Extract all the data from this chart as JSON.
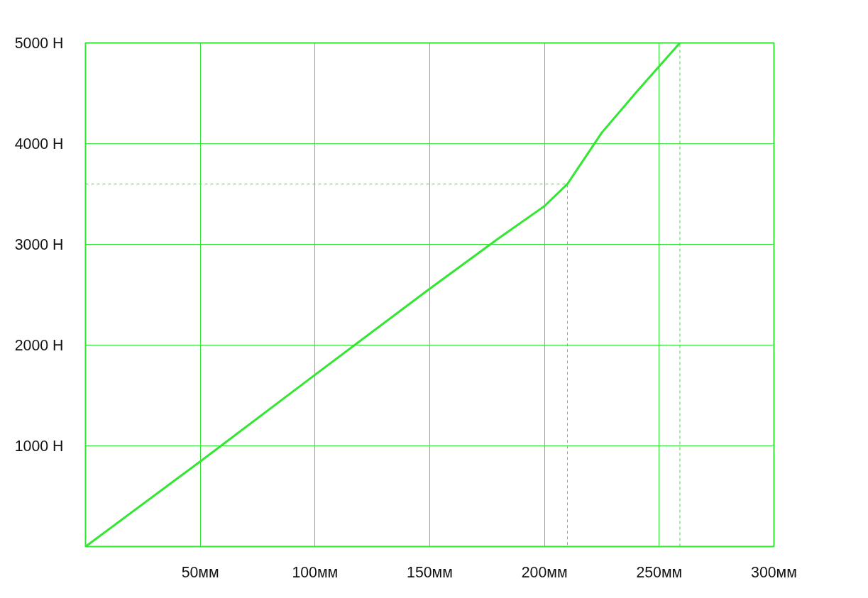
{
  "chart_data": {
    "type": "line",
    "xlim": [
      0,
      300
    ],
    "ylim": [
      0,
      5000
    ],
    "xticks": [
      {
        "value": 50,
        "label": "50мм"
      },
      {
        "value": 100,
        "label": "100мм"
      },
      {
        "value": 150,
        "label": "150мм"
      },
      {
        "value": 200,
        "label": "200мм"
      },
      {
        "value": 250,
        "label": "250мм"
      },
      {
        "value": 300,
        "label": "300мм"
      }
    ],
    "yticks": [
      {
        "value": 1000,
        "label": "1000 Н"
      },
      {
        "value": 2000,
        "label": "2000 Н"
      },
      {
        "value": 3000,
        "label": "3000 Н"
      },
      {
        "value": 4000,
        "label": "4000 Н"
      },
      {
        "value": 5000,
        "label": "5000 Н"
      }
    ],
    "grid": true,
    "marker": "none",
    "series": [
      {
        "color": "#33e633",
        "line_style": "solid",
        "x": [
          0,
          50,
          100,
          150,
          180,
          200,
          210,
          225,
          240,
          259
        ],
        "values": [
          0,
          845,
          1705,
          2560,
          3060,
          3380,
          3600,
          4110,
          4510,
          5000
        ]
      },
      {
        "color": "#33e633",
        "line_style": "dashed",
        "x": [
          0,
          210,
          210
        ],
        "values": [
          3600,
          3600,
          0
        ]
      },
      {
        "color": "#33e633",
        "line_style": "dashed",
        "x": [
          259,
          259
        ],
        "values": [
          0,
          5000
        ]
      }
    ]
  }
}
